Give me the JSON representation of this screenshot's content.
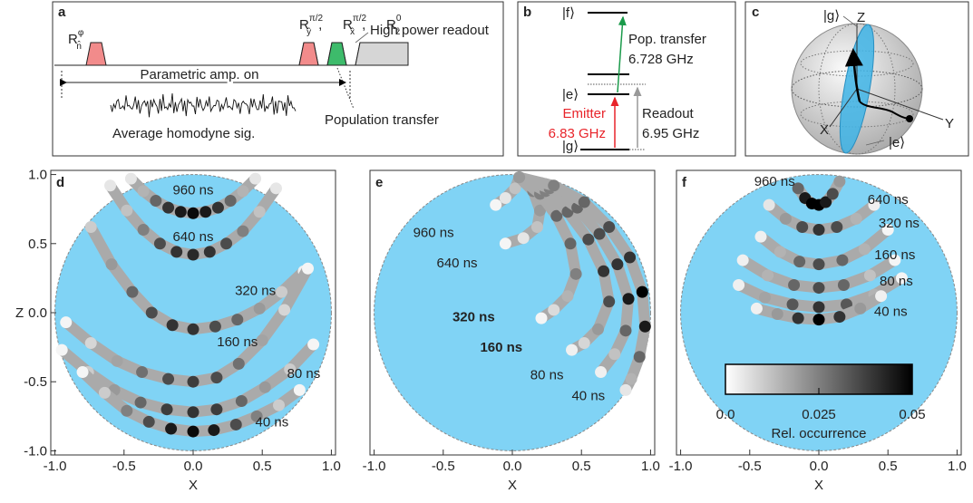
{
  "diagram_a": {
    "letter": "a",
    "pulse": {
      "base": "R",
      "sup": "φ",
      "sub": "n̂"
    },
    "rotations": [
      {
        "base": "R",
        "sup": "π/2",
        "sub": "ŷ"
      },
      {
        "base": "R",
        "sup": "π/2",
        "sub": "x̂"
      },
      {
        "base": "R",
        "sup": "0",
        "sub": "ẑ"
      }
    ],
    "separator": ",",
    "readout": "High power readout",
    "amp": "Parametric amp. on",
    "signal": "Average homodyne sig.",
    "transfer": "Population transfer"
  },
  "diagram_b": {
    "letter": "b",
    "levels": {
      "f": "|f⟩",
      "e": "|e⟩",
      "g": "|g⟩"
    },
    "transfer": {
      "name": "Pop. transfer",
      "freq": "6.728 GHz"
    },
    "emitter": {
      "name": "Emitter",
      "freq": "6.83 GHz"
    },
    "readout": {
      "name": "Readout",
      "freq": "6.95 GHz"
    }
  },
  "diagram_c": {
    "letter": "c",
    "labels": {
      "g": "|g⟩",
      "z": "Z",
      "x": "X",
      "y": "Y",
      "e": "|e⟩"
    }
  },
  "chart_data": [
    {
      "type": "scatter",
      "panel": "d",
      "sphere_color": "#80d3f5",
      "x_label": "X",
      "y_label": "Z",
      "xlim": [
        -1.03,
        1.03
      ],
      "ylim": [
        -1.03,
        1.03
      ],
      "xticks": [
        {
          "value": -1,
          "label": "-1.0"
        },
        -0.5,
        {
          "value": 0,
          "label": "0.0"
        },
        0.5,
        {
          "value": 1,
          "label": "1.0"
        }
      ],
      "yticks": [
        {
          "value": -1,
          "label": "-1.0"
        },
        -0.5,
        {
          "value": 0,
          "label": "0.0"
        },
        0.5,
        {
          "value": 1,
          "label": "1.0"
        }
      ],
      "series": [
        {
          "name": "960 ns",
          "x": [
            -0.45,
            -0.36,
            -0.27,
            -0.18,
            -0.09,
            0,
            0.09,
            0.18,
            0.27,
            0.36,
            0.45
          ],
          "y": [
            0.97,
            0.88,
            0.81,
            0.76,
            0.73,
            0.72,
            0.73,
            0.76,
            0.81,
            0.88,
            0.97
          ],
          "occurrence": [
            0.005,
            0.015,
            0.03,
            0.04,
            0.045,
            0.048,
            0.045,
            0.04,
            0.03,
            0.015,
            0.005
          ]
        },
        {
          "name": "640 ns",
          "x": [
            -0.6,
            -0.48,
            -0.36,
            -0.24,
            -0.12,
            0,
            0.12,
            0.24,
            0.36,
            0.48,
            0.6
          ],
          "y": [
            0.92,
            0.74,
            0.6,
            0.5,
            0.44,
            0.42,
            0.44,
            0.5,
            0.59,
            0.73,
            0.9
          ],
          "occurrence": [
            0.005,
            0.012,
            0.025,
            0.035,
            0.04,
            0.042,
            0.04,
            0.035,
            0.025,
            0.012,
            0.005
          ]
        },
        {
          "name": "320 ns",
          "x": [
            -0.74,
            -0.59,
            -0.44,
            -0.3,
            -0.15,
            0,
            0.16,
            0.32,
            0.48,
            0.64,
            0.8
          ],
          "y": [
            0.62,
            0.35,
            0.15,
            0,
            -0.09,
            -0.12,
            -0.1,
            -0.05,
            0.03,
            0.15,
            0.3
          ],
          "occurrence": [
            0.01,
            0.02,
            0.03,
            0.035,
            0.04,
            0.04,
            0.035,
            0.03,
            0.02,
            0.01,
            0.003
          ]
        },
        {
          "name": "160 ns",
          "x": [
            -0.92,
            -0.74,
            -0.55,
            -0.37,
            -0.18,
            0,
            0.17,
            0.33,
            0.5,
            0.66,
            0.83
          ],
          "y": [
            -0.07,
            -0.22,
            -0.35,
            -0.43,
            -0.48,
            -0.5,
            -0.47,
            -0.37,
            -0.2,
            0.02,
            0.32
          ],
          "occurrence": [
            0.002,
            0.008,
            0.018,
            0.028,
            0.035,
            0.038,
            0.035,
            0.028,
            0.018,
            0.008,
            0.002
          ]
        },
        {
          "name": "80 ns",
          "x": [
            -0.95,
            -0.76,
            -0.57,
            -0.38,
            -0.19,
            0,
            0.17,
            0.35,
            0.52,
            0.7,
            0.87
          ],
          "y": [
            -0.27,
            -0.43,
            -0.56,
            -0.65,
            -0.7,
            -0.72,
            -0.7,
            -0.64,
            -0.54,
            -0.41,
            -0.23
          ],
          "occurrence": [
            0.002,
            0.01,
            0.02,
            0.03,
            0.038,
            0.04,
            0.038,
            0.03,
            0.02,
            0.01,
            0.002
          ]
        },
        {
          "name": "40 ns",
          "x": [
            -0.8,
            -0.64,
            -0.48,
            -0.32,
            -0.16,
            0,
            0.15,
            0.31,
            0.46,
            0.62,
            0.77
          ],
          "y": [
            -0.43,
            -0.58,
            -0.71,
            -0.79,
            -0.84,
            -0.86,
            -0.85,
            -0.81,
            -0.75,
            -0.67,
            -0.56
          ],
          "occurrence": [
            0.002,
            0.01,
            0.025,
            0.035,
            0.045,
            0.048,
            0.045,
            0.035,
            0.025,
            0.01,
            0.002
          ]
        }
      ]
    },
    {
      "type": "scatter",
      "panel": "e",
      "sphere_color": "#80d3f5",
      "x_label": "X",
      "xlim": [
        -1.03,
        1.03
      ],
      "ylim": [
        -1.03,
        1.03
      ],
      "xticks": [
        {
          "value": -1,
          "label": "-1.0"
        },
        -0.5,
        {
          "value": 0,
          "label": "0.0"
        },
        0.5,
        {
          "value": 1,
          "label": "1.0"
        }
      ],
      "series": [
        {
          "name": "960 ns",
          "x": [
            0.05,
            0.02,
            -0.05,
            -0.12
          ],
          "y": [
            0.98,
            0.9,
            0.83,
            0.78
          ],
          "occurrence": [
            0.02,
            0.012,
            0.005,
            0.002
          ]
        },
        {
          "name": "640 ns",
          "x": [
            0.05,
            0.15,
            0.2,
            0.18,
            0.08,
            -0.05
          ],
          "y": [
            0.98,
            0.88,
            0.74,
            0.62,
            0.54,
            0.5
          ],
          "occurrence": [
            0.02,
            0.025,
            0.02,
            0.012,
            0.005,
            0.002
          ]
        },
        {
          "name": "320 ns",
          "x": [
            0.05,
            0.2,
            0.32,
            0.42,
            0.46,
            0.4,
            0.3,
            0.21
          ],
          "y": [
            0.98,
            0.86,
            0.7,
            0.5,
            0.28,
            0.12,
            0.02,
            -0.04
          ],
          "occurrence": [
            0.02,
            0.025,
            0.03,
            0.03,
            0.025,
            0.015,
            0.007,
            0.002
          ]
        },
        {
          "name": "160 ns",
          "x": [
            0.05,
            0.24,
            0.4,
            0.55,
            0.66,
            0.7,
            0.62,
            0.52,
            0.43
          ],
          "y": [
            0.98,
            0.88,
            0.73,
            0.53,
            0.3,
            0.08,
            -0.12,
            -0.22,
            -0.27
          ],
          "occurrence": [
            0.02,
            0.025,
            0.03,
            0.035,
            0.04,
            0.035,
            0.02,
            0.008,
            0.003
          ]
        },
        {
          "name": "80 ns",
          "x": [
            0.05,
            0.27,
            0.47,
            0.63,
            0.76,
            0.84,
            0.82,
            0.74,
            0.64
          ],
          "y": [
            0.98,
            0.9,
            0.76,
            0.57,
            0.35,
            0.1,
            -0.13,
            -0.3,
            -0.43
          ],
          "occurrence": [
            0.02,
            0.025,
            0.03,
            0.035,
            0.04,
            0.045,
            0.03,
            0.012,
            0.003
          ]
        },
        {
          "name": "40 ns",
          "x": [
            0.05,
            0.3,
            0.52,
            0.7,
            0.85,
            0.94,
            0.96,
            0.92,
            0.86,
            0.82
          ],
          "y": [
            0.98,
            0.92,
            0.8,
            0.62,
            0.4,
            0.15,
            -0.1,
            -0.32,
            -0.48,
            -0.56
          ],
          "occurrence": [
            0.02,
            0.025,
            0.03,
            0.035,
            0.04,
            0.05,
            0.045,
            0.03,
            0.015,
            0.005
          ]
        }
      ]
    },
    {
      "type": "scatter",
      "panel": "f",
      "sphere_color": "#80d3f5",
      "x_label": "X",
      "xlim": [
        -1.03,
        1.03
      ],
      "ylim": [
        -1.03,
        1.03
      ],
      "xticks": [
        {
          "value": -1,
          "label": "-1.0"
        },
        -0.5,
        {
          "value": 0,
          "label": "0.0"
        },
        0.5,
        {
          "value": 1,
          "label": "1.0"
        }
      ],
      "colorbar": {
        "label": "Rel. occurrence",
        "lim": [
          0,
          0.05
        ],
        "ticks": [
          {
            "value": 0,
            "label": "0.0"
          },
          0.025,
          0.05
        ]
      },
      "series": [
        {
          "name": "960 ns",
          "x": [
            -0.15,
            -0.1,
            -0.05,
            0,
            0.05,
            0.1,
            0.15
          ],
          "y": [
            0.9,
            0.83,
            0.79,
            0.78,
            0.8,
            0.86,
            0.95
          ],
          "occurrence": [
            0.03,
            0.045,
            0.05,
            0.05,
            0.045,
            0.035,
            0.02
          ]
        },
        {
          "name": "640 ns",
          "x": [
            -0.36,
            -0.24,
            -0.12,
            0,
            0.13,
            0.27,
            0.4
          ],
          "y": [
            0.78,
            0.68,
            0.62,
            0.6,
            0.62,
            0.68,
            0.78
          ],
          "occurrence": [
            0.005,
            0.02,
            0.035,
            0.04,
            0.035,
            0.015,
            0.003
          ]
        },
        {
          "name": "320 ns",
          "x": [
            -0.42,
            -0.28,
            -0.14,
            0,
            0.17,
            0.33,
            0.5
          ],
          "y": [
            0.55,
            0.44,
            0.37,
            0.35,
            0.38,
            0.46,
            0.6
          ],
          "occurrence": [
            0.003,
            0.015,
            0.03,
            0.035,
            0.03,
            0.015,
            0.002
          ]
        },
        {
          "name": "160 ns",
          "x": [
            -0.55,
            -0.37,
            -0.18,
            0,
            0.18,
            0.37,
            0.55
          ],
          "y": [
            0.38,
            0.27,
            0.2,
            0.18,
            0.2,
            0.27,
            0.38
          ],
          "occurrence": [
            0.003,
            0.015,
            0.03,
            0.035,
            0.03,
            0.012,
            0.002
          ]
        },
        {
          "name": "80 ns",
          "x": [
            -0.58,
            -0.39,
            -0.19,
            0,
            0.2,
            0.4,
            0.6
          ],
          "y": [
            0.2,
            0.11,
            0.06,
            0.04,
            0.06,
            0.13,
            0.25
          ],
          "occurrence": [
            0.003,
            0.018,
            0.033,
            0.04,
            0.033,
            0.015,
            0.002
          ]
        },
        {
          "name": "40 ns",
          "x": [
            -0.45,
            -0.3,
            -0.15,
            0,
            0.15,
            0.3,
            0.45
          ],
          "y": [
            0.03,
            -0.01,
            -0.04,
            -0.05,
            -0.03,
            0.03,
            0.12
          ],
          "occurrence": [
            0.003,
            0.02,
            0.04,
            0.05,
            0.04,
            0.02,
            0.003
          ]
        }
      ]
    }
  ]
}
